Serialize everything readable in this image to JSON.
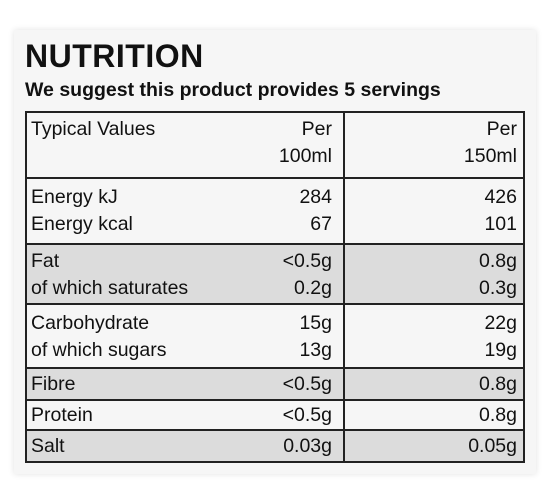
{
  "title": "NUTRITION",
  "subtitle": "We suggest this product provides 5 servings",
  "header": {
    "label": "Typical Values",
    "col1_line1": "Per",
    "col1_line2": "100ml",
    "col2_line1": "Per",
    "col2_line2": "150ml"
  },
  "groups": [
    {
      "rows": [
        {
          "label": "Energy kJ",
          "per100": "284",
          "per150": "426"
        },
        {
          "label": "Energy kcal",
          "per100": "67",
          "per150": "101"
        }
      ]
    },
    {
      "rows": [
        {
          "label": "Fat",
          "per100": "<0.5g",
          "per150": "0.8g"
        },
        {
          "label": "of which saturates",
          "per100": "0.2g",
          "per150": "0.3g"
        }
      ]
    },
    {
      "rows": [
        {
          "label": "Carbohydrate",
          "per100": "15g",
          "per150": "22g"
        },
        {
          "label": "of which sugars",
          "per100": "13g",
          "per150": "19g"
        }
      ]
    },
    {
      "rows": [
        {
          "label": "Fibre",
          "per100": "<0.5g",
          "per150": "0.8g"
        }
      ]
    },
    {
      "rows": [
        {
          "label": "Protein",
          "per100": "<0.5g",
          "per150": "0.8g"
        }
      ]
    },
    {
      "rows": [
        {
          "label": "Salt",
          "per100": "0.03g",
          "per150": "0.05g"
        }
      ]
    }
  ],
  "colors": {
    "shade": "#dcdcdc",
    "rule": "#222222",
    "panel": "#f6f6f6"
  }
}
